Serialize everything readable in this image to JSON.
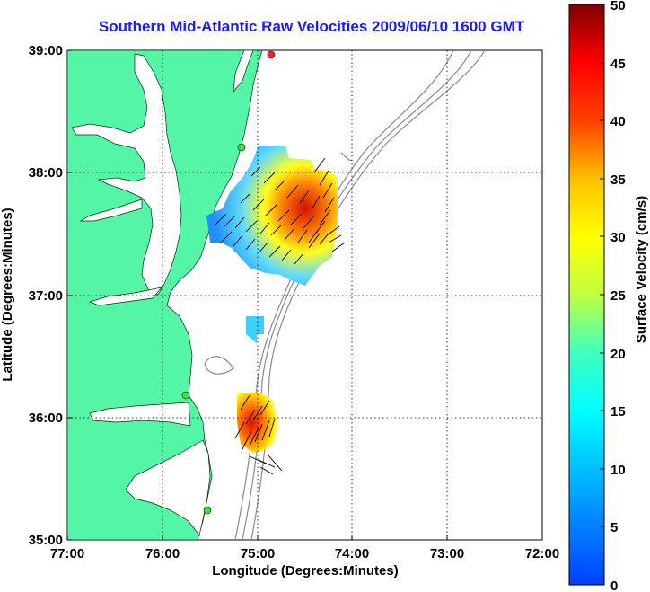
{
  "title": "Southern Mid-Atlantic Raw Velocities 2009/06/10 1600 GMT",
  "xlabel": "Longitude (Degrees:Minutes)",
  "ylabel": "Latitude (Degrees:Minutes)",
  "x_ticks": [
    "77:00",
    "76:00",
    "75:00",
    "74:00",
    "73:00",
    "72:00"
  ],
  "y_ticks": [
    "39:00",
    "38:00",
    "37:00",
    "36:00",
    "35:00"
  ],
  "colorbar": {
    "label": "Surface Velocity (cm/s)",
    "ticks": [
      "0",
      "5",
      "10",
      "15",
      "20",
      "25",
      "30",
      "35",
      "40",
      "45",
      "50"
    ]
  },
  "colors": {
    "land": "#55f5a8",
    "title": "#1a1aff",
    "bathymetry": "#888888"
  }
}
